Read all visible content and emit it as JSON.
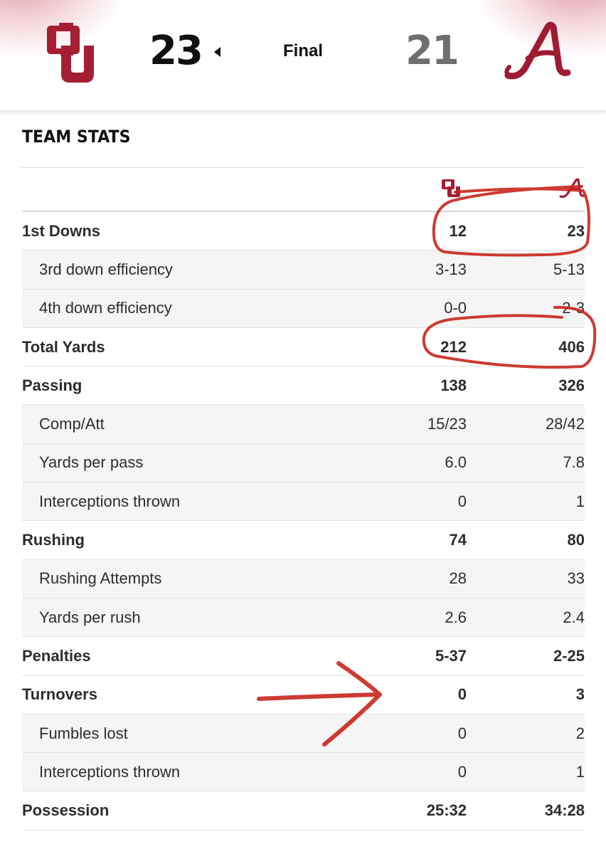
{
  "scoreboard": {
    "home": {
      "logo": "ou-logo-icon",
      "score": "23",
      "color": "#9b1c2e"
    },
    "away": {
      "logo": "alabama-script-a-icon",
      "score": "21",
      "color": "#9e1b32"
    },
    "winner_indicator": "triangle-left-icon",
    "status": "Final"
  },
  "team_stats": {
    "title": "TEAM STATS",
    "rows": [
      {
        "label": "1st Downs",
        "home": "12",
        "away": "23",
        "type": "main"
      },
      {
        "label": "3rd down efficiency",
        "home": "3-13",
        "away": "5-13",
        "type": "sub"
      },
      {
        "label": "4th down efficiency",
        "home": "0-0",
        "away": "2-3",
        "type": "sub"
      },
      {
        "label": "Total Yards",
        "home": "212",
        "away": "406",
        "type": "main"
      },
      {
        "label": "Passing",
        "home": "138",
        "away": "326",
        "type": "main"
      },
      {
        "label": "Comp/Att",
        "home": "15/23",
        "away": "28/42",
        "type": "sub"
      },
      {
        "label": "Yards per pass",
        "home": "6.0",
        "away": "7.8",
        "type": "sub"
      },
      {
        "label": "Interceptions thrown",
        "home": "0",
        "away": "1",
        "type": "sub"
      },
      {
        "label": "Rushing",
        "home": "74",
        "away": "80",
        "type": "main"
      },
      {
        "label": "Rushing Attempts",
        "home": "28",
        "away": "33",
        "type": "sub"
      },
      {
        "label": "Yards per rush",
        "home": "2.6",
        "away": "2.4",
        "type": "sub"
      },
      {
        "label": "Penalties",
        "home": "5-37",
        "away": "2-25",
        "type": "main"
      },
      {
        "label": "Turnovers",
        "home": "0",
        "away": "3",
        "type": "main"
      },
      {
        "label": "Fumbles lost",
        "home": "0",
        "away": "2",
        "type": "sub"
      },
      {
        "label": "Interceptions thrown",
        "home": "0",
        "away": "1",
        "type": "sub"
      },
      {
        "label": "Possession",
        "home": "25:32",
        "away": "34:28",
        "type": "main"
      }
    ]
  },
  "annotations": {
    "marker_color": "#c8261c"
  }
}
